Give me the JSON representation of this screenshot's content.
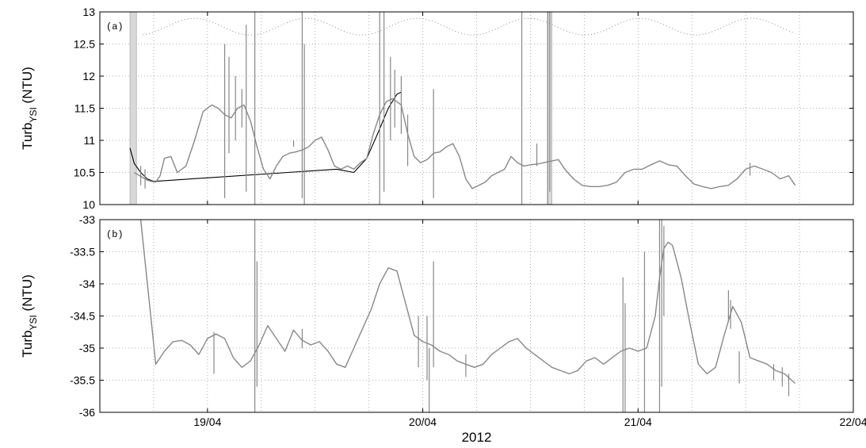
{
  "chart_data": [
    {
      "type": "line",
      "panel_label": "(a)",
      "ylabel_main": "Turb",
      "ylabel_sub": "YSI",
      "ylabel_unit": "(NTU)",
      "xlim": [
        18.5,
        22.0
      ],
      "ylim": [
        10,
        13
      ],
      "yticks": [
        {
          "v": 13,
          "label": "13"
        },
        {
          "v": 12.5,
          "label": "12.5"
        },
        {
          "v": 12,
          "label": "12"
        },
        {
          "v": 11.5,
          "label": "11.5"
        },
        {
          "v": 11,
          "label": "11"
        },
        {
          "v": 10.5,
          "label": "10.5"
        },
        {
          "v": 10,
          "label": "10"
        }
      ],
      "xgrid": [
        18.75,
        19.0,
        19.25,
        19.5,
        19.75,
        20.0,
        20.25,
        20.5,
        20.75,
        21.0,
        21.25,
        21.5,
        21.75
      ],
      "shaded_spans": [
        [
          18.64,
          18.67
        ],
        [
          20.58,
          20.6
        ]
      ],
      "tide_reference": {
        "center": 12.77,
        "amplitude": 0.13,
        "period_days": 0.5175,
        "phase_day": 18.94,
        "x_range": [
          18.7,
          21.73
        ]
      },
      "series": [
        {
          "color": "#000000",
          "x": [
            18.64,
            18.66,
            18.69,
            18.72,
            18.75,
            19.6,
            19.68,
            19.74,
            19.79,
            19.84,
            19.88,
            19.9
          ],
          "y": [
            10.88,
            10.64,
            10.5,
            10.4,
            10.36,
            10.55,
            10.5,
            10.72,
            11.1,
            11.5,
            11.72,
            11.75
          ]
        },
        {
          "color": "#888888",
          "x": [
            18.66,
            18.7,
            18.72,
            18.74,
            18.76,
            18.78,
            18.8,
            18.83,
            18.86,
            18.9,
            18.94,
            18.98,
            19.02,
            19.05,
            19.08,
            19.11,
            19.14,
            19.17,
            19.2,
            19.23,
            19.26,
            19.29,
            19.32,
            19.35,
            19.38,
            19.41,
            19.44,
            19.47,
            19.5,
            19.53,
            19.56,
            19.59,
            19.62,
            19.65,
            19.68,
            19.71,
            19.74,
            19.77,
            19.8,
            19.83,
            19.86,
            19.9,
            19.93,
            19.96,
            19.99,
            20.02,
            20.05,
            20.08,
            20.11,
            20.14,
            20.17,
            20.2,
            20.23,
            20.26,
            20.29,
            20.32,
            20.35,
            20.38,
            20.41,
            20.44,
            20.47,
            20.5,
            20.53,
            20.56,
            20.6,
            20.63,
            20.66,
            20.7,
            20.74,
            20.78,
            20.82,
            20.86,
            20.9,
            20.94,
            20.98,
            21.02,
            21.06,
            21.1,
            21.14,
            21.18,
            21.22,
            21.26,
            21.3,
            21.34,
            21.38,
            21.42,
            21.46,
            21.5,
            21.54,
            21.58,
            21.62,
            21.66,
            21.7,
            21.73
          ],
          "y": [
            10.5,
            10.42,
            10.38,
            10.36,
            10.35,
            10.45,
            10.72,
            10.75,
            10.5,
            10.6,
            11.0,
            11.45,
            11.55,
            11.5,
            11.4,
            11.35,
            11.5,
            11.55,
            11.3,
            10.9,
            10.55,
            10.4,
            10.6,
            10.75,
            10.8,
            10.82,
            10.85,
            10.9,
            11.0,
            11.05,
            10.85,
            10.6,
            10.55,
            10.6,
            10.55,
            10.65,
            10.72,
            11.1,
            11.4,
            11.6,
            11.65,
            11.55,
            11.1,
            10.75,
            10.65,
            10.7,
            10.8,
            10.82,
            10.9,
            10.95,
            10.75,
            10.4,
            10.25,
            10.3,
            10.35,
            10.45,
            10.5,
            10.55,
            10.75,
            10.65,
            10.6,
            10.62,
            10.63,
            10.65,
            10.68,
            10.7,
            10.55,
            10.4,
            10.3,
            10.28,
            10.28,
            10.3,
            10.35,
            10.5,
            10.55,
            10.55,
            10.62,
            10.68,
            10.62,
            10.6,
            10.45,
            10.32,
            10.28,
            10.25,
            10.28,
            10.3,
            10.4,
            10.55,
            10.6,
            10.55,
            10.5,
            10.4,
            10.45,
            10.3
          ]
        }
      ],
      "spikes": [
        {
          "x": 18.69,
          "lo": 10.3,
          "hi": 10.6
        },
        {
          "x": 18.71,
          "lo": 10.25,
          "hi": 10.55
        },
        {
          "x": 19.08,
          "lo": 10.1,
          "hi": 12.5
        },
        {
          "x": 19.1,
          "lo": 10.8,
          "hi": 12.3
        },
        {
          "x": 19.13,
          "lo": 11.0,
          "hi": 12.0
        },
        {
          "x": 19.16,
          "lo": 11.2,
          "hi": 11.8
        },
        {
          "x": 19.18,
          "lo": 10.2,
          "hi": 12.8
        },
        {
          "x": 19.22,
          "lo": 10.0,
          "hi": 13.0
        },
        {
          "x": 19.4,
          "lo": 10.9,
          "hi": 11.0
        },
        {
          "x": 19.44,
          "lo": 10.1,
          "hi": 13.0
        },
        {
          "x": 19.45,
          "lo": 10.0,
          "hi": 12.5
        },
        {
          "x": 19.8,
          "lo": 10.0,
          "hi": 13.0
        },
        {
          "x": 19.82,
          "lo": 10.2,
          "hi": 13.0
        },
        {
          "x": 19.85,
          "lo": 11.0,
          "hi": 12.3
        },
        {
          "x": 19.87,
          "lo": 11.2,
          "hi": 12.1
        },
        {
          "x": 19.9,
          "lo": 11.1,
          "hi": 12.0
        },
        {
          "x": 19.93,
          "lo": 10.6,
          "hi": 11.4
        },
        {
          "x": 20.05,
          "lo": 10.1,
          "hi": 11.8
        },
        {
          "x": 20.46,
          "lo": 10.0,
          "hi": 13.0
        },
        {
          "x": 20.53,
          "lo": 10.6,
          "hi": 10.95
        },
        {
          "x": 20.58,
          "lo": 10.0,
          "hi": 13.0
        },
        {
          "x": 20.59,
          "lo": 10.2,
          "hi": 13.0
        },
        {
          "x": 21.52,
          "lo": 10.45,
          "hi": 10.65
        }
      ]
    },
    {
      "type": "line",
      "panel_label": "(b)",
      "ylabel_main": "Turb",
      "ylabel_sub": "YSI",
      "ylabel_unit": "(NTU)",
      "xlim": [
        18.5,
        22.0
      ],
      "ylim": [
        -36,
        -33
      ],
      "yticks": [
        {
          "v": -33,
          "label": "-33"
        },
        {
          "v": -33.5,
          "label": "-33.5"
        },
        {
          "v": -34,
          "label": "-34"
        },
        {
          "v": -34.5,
          "label": "-34.5"
        },
        {
          "v": -35,
          "label": "-35"
        },
        {
          "v": -35.5,
          "label": "-35.5"
        },
        {
          "v": -36,
          "label": "-36"
        }
      ],
      "xgrid": [
        18.75,
        19.0,
        19.25,
        19.5,
        19.75,
        20.0,
        20.25,
        20.5,
        20.75,
        21.0,
        21.25,
        21.5,
        21.75
      ],
      "xticks": [
        {
          "v": 19.0,
          "label": "19/04"
        },
        {
          "v": 20.0,
          "label": "20/04"
        },
        {
          "v": 21.0,
          "label": "21/04"
        },
        {
          "v": 22.0,
          "label": "22/04"
        }
      ],
      "xlabel": "2012",
      "series": [
        {
          "color": "#888888",
          "x": [
            18.69,
            18.76,
            18.8,
            18.84,
            18.88,
            18.92,
            18.96,
            19.0,
            19.04,
            19.08,
            19.12,
            19.16,
            19.2,
            19.24,
            19.28,
            19.32,
            19.36,
            19.4,
            19.44,
            19.48,
            19.52,
            19.56,
            19.6,
            19.64,
            19.68,
            19.72,
            19.76,
            19.8,
            19.84,
            19.88,
            19.92,
            19.96,
            20.0,
            20.04,
            20.08,
            20.12,
            20.16,
            20.2,
            20.24,
            20.28,
            20.32,
            20.36,
            20.4,
            20.44,
            20.48,
            20.52,
            20.56,
            20.6,
            20.64,
            20.68,
            20.72,
            20.76,
            20.8,
            20.84,
            20.88,
            20.92,
            20.96,
            21.0,
            21.04,
            21.08,
            21.1,
            21.12,
            21.14,
            21.16,
            21.2,
            21.24,
            21.28,
            21.32,
            21.36,
            21.4,
            21.44,
            21.48,
            21.52,
            21.56,
            21.6,
            21.64,
            21.68,
            21.73
          ],
          "y": [
            -33.0,
            -35.25,
            -35.05,
            -34.9,
            -34.88,
            -34.95,
            -35.1,
            -34.85,
            -34.78,
            -34.85,
            -35.15,
            -35.3,
            -35.2,
            -34.95,
            -34.65,
            -34.85,
            -35.05,
            -34.72,
            -34.88,
            -34.95,
            -34.9,
            -35.05,
            -35.25,
            -35.3,
            -35.0,
            -34.7,
            -34.4,
            -34.0,
            -33.75,
            -33.8,
            -34.3,
            -34.8,
            -34.9,
            -34.95,
            -35.05,
            -35.1,
            -35.2,
            -35.25,
            -35.3,
            -35.25,
            -35.1,
            -35.0,
            -34.9,
            -34.85,
            -35.0,
            -35.1,
            -35.2,
            -35.3,
            -35.35,
            -35.4,
            -35.35,
            -35.2,
            -35.15,
            -35.25,
            -35.15,
            -35.05,
            -35.0,
            -35.05,
            -35.0,
            -34.5,
            -33.9,
            -33.45,
            -33.35,
            -33.4,
            -33.9,
            -34.6,
            -35.25,
            -35.4,
            -35.3,
            -34.8,
            -34.35,
            -34.6,
            -35.15,
            -35.2,
            -35.25,
            -35.35,
            -35.4,
            -35.55
          ]
        }
      ],
      "spikes": [
        {
          "x": 19.03,
          "lo": -35.4,
          "hi": -34.75
        },
        {
          "x": 19.22,
          "lo": -36.0,
          "hi": -33.0
        },
        {
          "x": 19.23,
          "lo": -35.6,
          "hi": -33.65
        },
        {
          "x": 19.44,
          "lo": -35.0,
          "hi": -34.7
        },
        {
          "x": 19.98,
          "lo": -35.3,
          "hi": -34.5
        },
        {
          "x": 20.02,
          "lo": -35.5,
          "hi": -34.5
        },
        {
          "x": 20.03,
          "lo": -36.0,
          "hi": -35.0
        },
        {
          "x": 20.05,
          "lo": -35.3,
          "hi": -33.65
        },
        {
          "x": 20.2,
          "lo": -35.45,
          "hi": -35.1
        },
        {
          "x": 20.93,
          "lo": -36.0,
          "hi": -33.9
        },
        {
          "x": 20.94,
          "lo": -36.0,
          "hi": -34.3
        },
        {
          "x": 21.03,
          "lo": -36.0,
          "hi": -33.5
        },
        {
          "x": 21.1,
          "lo": -36.0,
          "hi": -33.0
        },
        {
          "x": 21.11,
          "lo": -35.6,
          "hi": -33.0
        },
        {
          "x": 21.12,
          "lo": -34.5,
          "hi": -33.1
        },
        {
          "x": 21.42,
          "lo": -34.6,
          "hi": -34.1
        },
        {
          "x": 21.43,
          "lo": -34.7,
          "hi": -34.25
        },
        {
          "x": 21.47,
          "lo": -35.55,
          "hi": -35.05
        },
        {
          "x": 21.63,
          "lo": -35.5,
          "hi": -35.25
        },
        {
          "x": 21.67,
          "lo": -35.6,
          "hi": -35.3
        },
        {
          "x": 21.7,
          "lo": -35.75,
          "hi": -35.4
        }
      ]
    }
  ]
}
